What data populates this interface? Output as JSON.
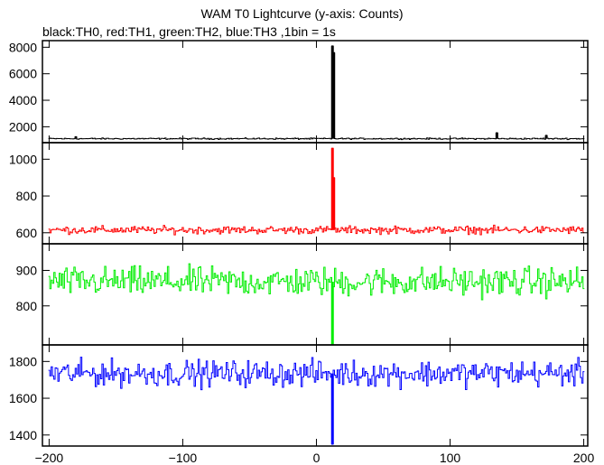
{
  "chart_data": {
    "type": "line",
    "title": "WAM T0 Lightcurve (y-axis: Counts)",
    "subtitle": "black:TH0, red:TH1, green:TH2, blue:TH3 ,1bin = 1s",
    "xlim": [
      -205,
      203
    ],
    "x_ticks": [
      -200,
      -100,
      0,
      100,
      200
    ],
    "x_tick_labels": [
      "−200",
      "−100",
      "0",
      "100",
      "200"
    ],
    "grid": false,
    "series": [
      {
        "name": "TH0",
        "color": "#000000",
        "ylim": [
          800,
          8500
        ],
        "y_ticks": [
          2000,
          4000,
          6000,
          8000
        ],
        "baseline": 1100,
        "noise": 70,
        "spikes": [
          {
            "x": 12,
            "y": 8100
          },
          {
            "x": 13,
            "y": 7600
          },
          {
            "x": 135,
            "y": 1550
          },
          {
            "x": 172,
            "y": 1350
          },
          {
            "x": -180,
            "y": 1250
          }
        ]
      },
      {
        "name": "TH1",
        "color": "#ff0000",
        "ylim": [
          540,
          1090
        ],
        "y_ticks": [
          600,
          800,
          1000
        ],
        "baseline": 615,
        "noise": 28,
        "spikes": [
          {
            "x": 12,
            "y": 1060
          },
          {
            "x": 13,
            "y": 900
          }
        ]
      },
      {
        "name": "TH2",
        "color": "#00ee00",
        "ylim": [
          690,
          975
        ],
        "y_ticks": [
          800,
          900
        ],
        "baseline": 868,
        "noise": 55,
        "spikes": [
          {
            "x": 12,
            "y": 692
          }
        ]
      },
      {
        "name": "TH3",
        "color": "#0000ff",
        "ylim": [
          1340,
          1890
        ],
        "y_ticks": [
          1400,
          1600,
          1800
        ],
        "baseline": 1735,
        "noise": 95,
        "spikes": [
          {
            "x": 12,
            "y": 1350
          }
        ]
      }
    ]
  }
}
